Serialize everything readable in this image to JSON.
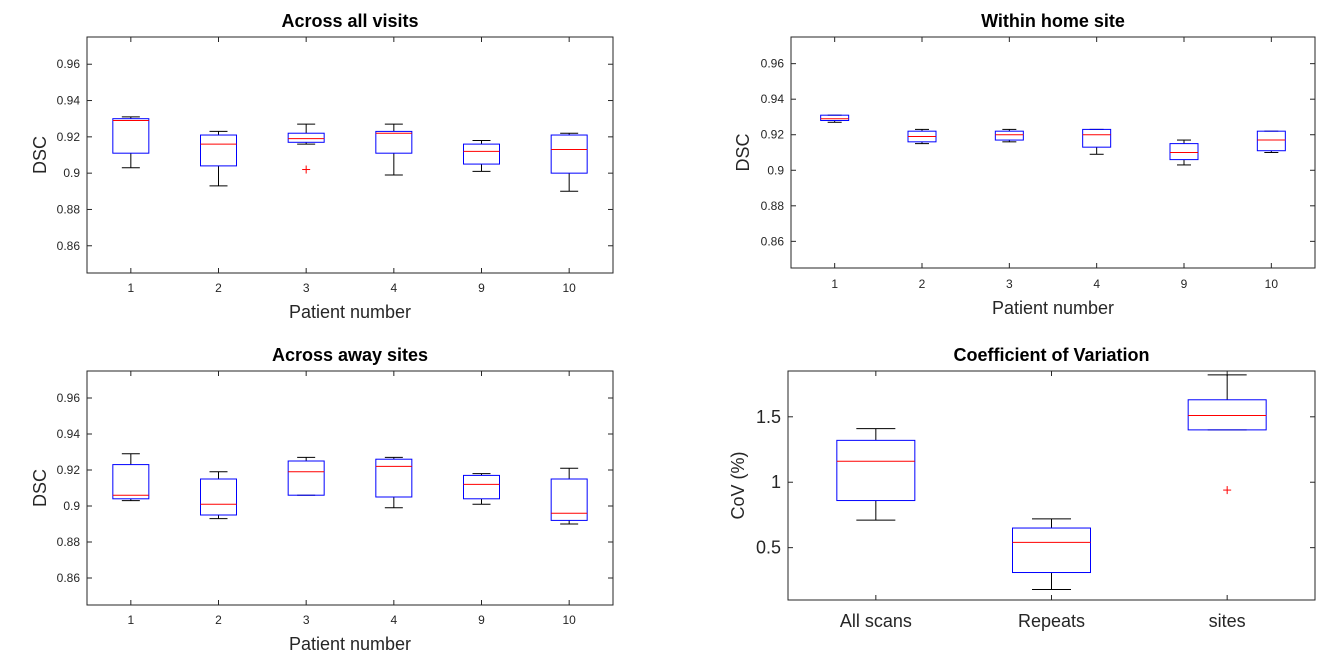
{
  "chart_data": [
    {
      "type": "box",
      "title": "Across all visits",
      "xlabel": "Patient number",
      "ylabel": "DSC",
      "ylim": [
        0.845,
        0.975
      ],
      "yticks": [
        0.86,
        0.88,
        0.9,
        0.92,
        0.94,
        0.96
      ],
      "ytick_labels": [
        "0.86",
        "0.88",
        "0.9",
        "0.92",
        "0.94",
        "0.96"
      ],
      "categories": [
        "1",
        "2",
        "3",
        "4",
        "9",
        "10"
      ],
      "boxes": [
        {
          "whisker_low": 0.903,
          "q1": 0.911,
          "median": 0.929,
          "q3": 0.93,
          "whisker_high": 0.931,
          "outliers": []
        },
        {
          "whisker_low": 0.893,
          "q1": 0.904,
          "median": 0.916,
          "q3": 0.921,
          "whisker_high": 0.923,
          "outliers": []
        },
        {
          "whisker_low": 0.916,
          "q1": 0.917,
          "median": 0.919,
          "q3": 0.922,
          "whisker_high": 0.927,
          "outliers": [
            0.902
          ]
        },
        {
          "whisker_low": 0.899,
          "q1": 0.911,
          "median": 0.922,
          "q3": 0.923,
          "whisker_high": 0.927,
          "outliers": []
        },
        {
          "whisker_low": 0.901,
          "q1": 0.905,
          "median": 0.912,
          "q3": 0.916,
          "whisker_high": 0.918,
          "outliers": []
        },
        {
          "whisker_low": 0.89,
          "q1": 0.9,
          "median": 0.913,
          "q3": 0.921,
          "whisker_high": 0.922,
          "outliers": []
        }
      ]
    },
    {
      "type": "box",
      "title": "Within home site",
      "xlabel": "Patient number",
      "ylabel": "DSC",
      "ylim": [
        0.845,
        0.975
      ],
      "yticks": [
        0.86,
        0.88,
        0.9,
        0.92,
        0.94,
        0.96
      ],
      "ytick_labels": [
        "0.86",
        "0.88",
        "0.9",
        "0.92",
        "0.94",
        "0.96"
      ],
      "categories": [
        "1",
        "2",
        "3",
        "4",
        "9",
        "10"
      ],
      "boxes": [
        {
          "whisker_low": 0.927,
          "q1": 0.928,
          "median": 0.929,
          "q3": 0.931,
          "whisker_high": 0.931,
          "outliers": []
        },
        {
          "whisker_low": 0.915,
          "q1": 0.916,
          "median": 0.919,
          "q3": 0.922,
          "whisker_high": 0.923,
          "outliers": []
        },
        {
          "whisker_low": 0.916,
          "q1": 0.917,
          "median": 0.92,
          "q3": 0.922,
          "whisker_high": 0.923,
          "outliers": []
        },
        {
          "whisker_low": 0.909,
          "q1": 0.913,
          "median": 0.92,
          "q3": 0.923,
          "whisker_high": 0.923,
          "outliers": []
        },
        {
          "whisker_low": 0.903,
          "q1": 0.906,
          "median": 0.91,
          "q3": 0.915,
          "whisker_high": 0.917,
          "outliers": []
        },
        {
          "whisker_low": 0.91,
          "q1": 0.911,
          "median": 0.917,
          "q3": 0.922,
          "whisker_high": 0.922,
          "outliers": []
        }
      ]
    },
    {
      "type": "box",
      "title": "Across away sites",
      "xlabel": "Patient number",
      "ylabel": "DSC",
      "ylim": [
        0.845,
        0.975
      ],
      "yticks": [
        0.86,
        0.88,
        0.9,
        0.92,
        0.94,
        0.96
      ],
      "ytick_labels": [
        "0.86",
        "0.88",
        "0.9",
        "0.92",
        "0.94",
        "0.96"
      ],
      "categories": [
        "1",
        "2",
        "3",
        "4",
        "9",
        "10"
      ],
      "boxes": [
        {
          "whisker_low": 0.903,
          "q1": 0.904,
          "median": 0.906,
          "q3": 0.923,
          "whisker_high": 0.929,
          "outliers": []
        },
        {
          "whisker_low": 0.893,
          "q1": 0.895,
          "median": 0.901,
          "q3": 0.915,
          "whisker_high": 0.919,
          "outliers": []
        },
        {
          "whisker_low": 0.906,
          "q1": 0.906,
          "median": 0.919,
          "q3": 0.925,
          "whisker_high": 0.927,
          "outliers": []
        },
        {
          "whisker_low": 0.899,
          "q1": 0.905,
          "median": 0.922,
          "q3": 0.926,
          "whisker_high": 0.927,
          "outliers": []
        },
        {
          "whisker_low": 0.901,
          "q1": 0.904,
          "median": 0.912,
          "q3": 0.917,
          "whisker_high": 0.918,
          "outliers": []
        },
        {
          "whisker_low": 0.89,
          "q1": 0.892,
          "median": 0.896,
          "q3": 0.915,
          "whisker_high": 0.921,
          "outliers": []
        }
      ]
    },
    {
      "type": "box",
      "title": "Coefficient of Variation",
      "xlabel": "",
      "ylabel": "CoV (%)",
      "ylim": [
        0.1,
        1.85
      ],
      "yticks": [
        0.5,
        1,
        1.5
      ],
      "ytick_labels": [
        "0.5",
        "1",
        "1.5"
      ],
      "categories": [
        "All scans",
        "Repeats",
        "sites"
      ],
      "boxes": [
        {
          "whisker_low": 0.71,
          "q1": 0.86,
          "median": 1.16,
          "q3": 1.32,
          "whisker_high": 1.41,
          "outliers": []
        },
        {
          "whisker_low": 0.18,
          "q1": 0.31,
          "median": 0.54,
          "q3": 0.65,
          "whisker_high": 0.72,
          "outliers": []
        },
        {
          "whisker_low": 1.4,
          "q1": 1.4,
          "median": 1.51,
          "q3": 1.63,
          "whisker_high": 1.82,
          "outliers": [
            0.94
          ]
        }
      ]
    }
  ]
}
